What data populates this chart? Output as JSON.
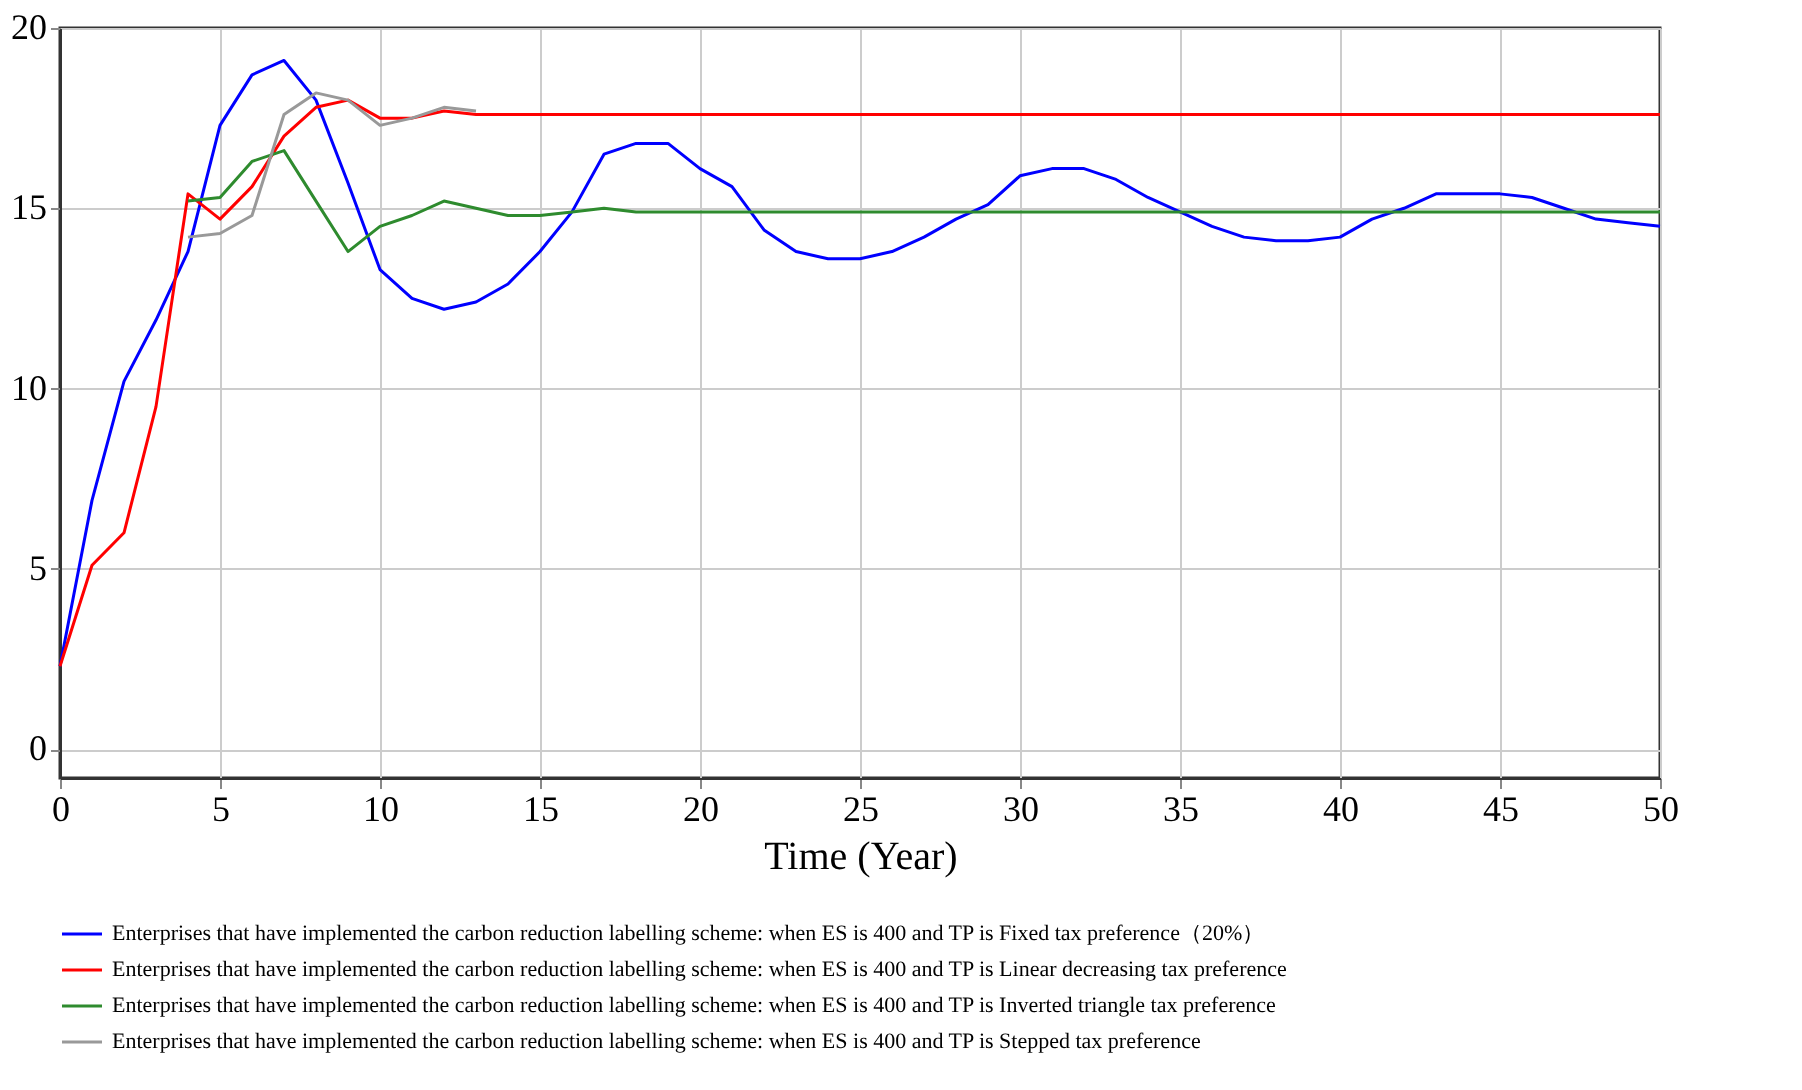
{
  "chart_data": {
    "type": "line",
    "xlabel": "Time (Year)",
    "x": [
      0,
      1,
      2,
      3,
      4,
      5,
      6,
      7,
      8,
      9,
      10,
      11,
      12,
      13,
      14,
      15,
      16,
      17,
      18,
      19,
      20,
      21,
      22,
      23,
      24,
      25,
      26,
      27,
      28,
      29,
      30,
      31,
      32,
      33,
      34,
      35,
      36,
      37,
      38,
      39,
      40,
      41,
      42,
      43,
      44,
      45,
      46,
      47,
      48,
      49,
      50
    ],
    "xlim": [
      0,
      50
    ],
    "xticks": [
      0,
      5,
      10,
      15,
      20,
      25,
      30,
      35,
      40,
      45,
      50
    ],
    "ylim": [
      -0.8,
      20
    ],
    "yticks": [
      0,
      5,
      10,
      15,
      20
    ],
    "grid": true,
    "legend": "bottom",
    "marker": "none",
    "line_style": "solid",
    "series": [
      {
        "name": "Enterprises that have implemented the carbon reduction labelling scheme: when ES is 400 and TP is Fixed tax preference（20%）",
        "color": "#0000ff",
        "values": [
          2.3,
          6.9,
          10.2,
          11.9,
          13.8,
          17.3,
          18.7,
          19.1,
          18.0,
          15.7,
          13.3,
          12.5,
          12.2,
          12.4,
          12.9,
          13.8,
          14.9,
          16.5,
          16.8,
          16.8,
          16.1,
          15.6,
          14.4,
          13.8,
          13.6,
          13.6,
          13.8,
          14.2,
          14.7,
          15.1,
          15.9,
          16.1,
          16.1,
          15.8,
          15.3,
          14.9,
          14.5,
          14.2,
          14.1,
          14.1,
          14.2,
          14.7,
          15.0,
          15.4,
          15.4,
          15.4,
          15.3,
          15.0,
          14.7,
          14.6,
          14.5
        ]
      },
      {
        "name": "Enterprises that have implemented the carbon reduction labelling scheme: when ES is 400 and TP is Linear decreasing tax preference",
        "color": "#ff0000",
        "values": [
          2.3,
          5.1,
          6.0,
          9.5,
          15.4,
          14.7,
          15.6,
          17.0,
          17.8,
          18.0,
          17.5,
          17.5,
          17.7,
          17.6,
          17.6,
          17.6,
          17.6,
          17.6,
          17.6,
          17.6,
          17.6,
          17.6,
          17.6,
          17.6,
          17.6,
          17.6,
          17.6,
          17.6,
          17.6,
          17.6,
          17.6,
          17.6,
          17.6,
          17.6,
          17.6,
          17.6,
          17.6,
          17.6,
          17.6,
          17.6,
          17.6,
          17.6,
          17.6,
          17.6,
          17.6,
          17.6,
          17.6,
          17.6,
          17.6,
          17.6,
          17.6
        ]
      },
      {
        "name": "Enterprises that have implemented the carbon reduction labelling scheme: when ES is 400 and TP is Inverted triangle tax preference",
        "color": "#2e8b2e",
        "values": [
          null,
          null,
          null,
          null,
          15.2,
          15.3,
          16.3,
          16.6,
          15.2,
          13.8,
          14.5,
          14.8,
          15.2,
          15.0,
          14.8,
          14.8,
          14.9,
          15.0,
          14.9,
          14.9,
          14.9,
          14.9,
          14.9,
          14.9,
          14.9,
          14.9,
          14.9,
          14.9,
          14.9,
          14.9,
          14.9,
          14.9,
          14.9,
          14.9,
          14.9,
          14.9,
          14.9,
          14.9,
          14.9,
          14.9,
          14.9,
          14.9,
          14.9,
          14.9,
          14.9,
          14.9,
          14.9,
          14.9,
          14.9,
          14.9,
          14.9
        ]
      },
      {
        "name": "Enterprises that have implemented the carbon reduction labelling scheme: when ES is 400 and TP is Stepped tax preference",
        "color": "#999999",
        "values": [
          null,
          null,
          null,
          null,
          14.2,
          14.3,
          14.8,
          17.6,
          18.2,
          18.0,
          17.3,
          17.5,
          17.8,
          17.7,
          null,
          null,
          null,
          null,
          null,
          null,
          null,
          null,
          null,
          null,
          null,
          null,
          null,
          null,
          null,
          null,
          null,
          null,
          null,
          null,
          null,
          null,
          null,
          null,
          null,
          null,
          null,
          null,
          null,
          null,
          null,
          null,
          null,
          null,
          null,
          null,
          null
        ]
      }
    ]
  }
}
